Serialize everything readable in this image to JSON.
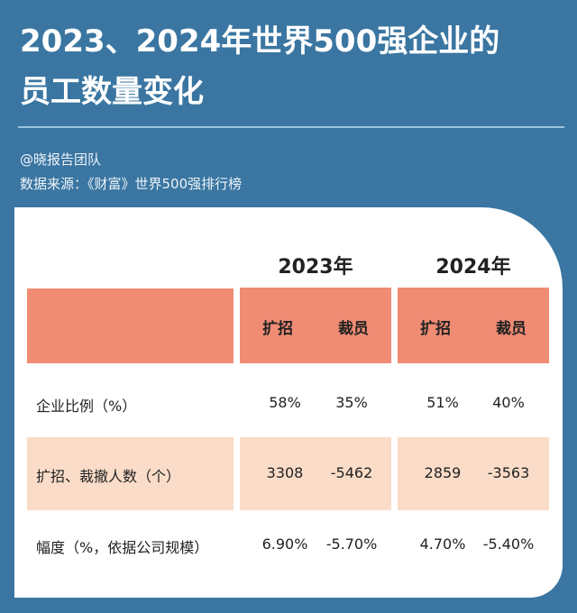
{
  "title_lines": [
    "2023、2024年世界500强企业的",
    "员工数量变化"
  ],
  "author": "@晓报告团队",
  "source": "数据来源：《财富》世界500强排行榜",
  "colors": {
    "background": "#3a76a1",
    "header": "#f08c74",
    "highlight_row": "#fadcc8"
  },
  "chart_data": {
    "type": "table",
    "years": [
      "2023年",
      "2024年"
    ],
    "subheaders": [
      "扩招",
      "裁员",
      "扩招",
      "裁员"
    ],
    "rows": [
      {
        "label": "企业比例（%）",
        "values": [
          "58%",
          "35%",
          "51%",
          "40%"
        ]
      },
      {
        "label": "扩招、裁撤人数（个）",
        "values": [
          "3308",
          "-5462",
          "2859",
          "-3563"
        ]
      },
      {
        "label": "幅度（%，依据公司规模）",
        "values": [
          "6.90%",
          "-5.70%",
          "4.70%",
          "-5.40%"
        ]
      }
    ]
  }
}
